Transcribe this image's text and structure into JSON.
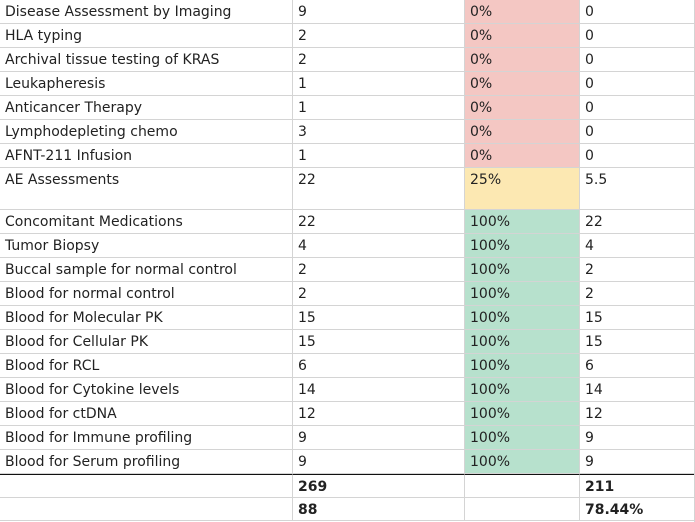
{
  "rows": [
    {
      "name": "Disease Assessment by Imaging",
      "count": "9",
      "pct": "0%",
      "value": "0",
      "status": "red"
    },
    {
      "name": "HLA typing",
      "count": "2",
      "pct": "0%",
      "value": "0",
      "status": "red"
    },
    {
      "name": "Archival tissue testing of KRAS",
      "count": "2",
      "pct": "0%",
      "value": "0",
      "status": "red"
    },
    {
      "name": "Leukapheresis",
      "count": "1",
      "pct": "0%",
      "value": "0",
      "status": "red"
    },
    {
      "name": "Anticancer Therapy",
      "count": "1",
      "pct": "0%",
      "value": "0",
      "status": "red"
    },
    {
      "name": "Lymphodepleting chemo",
      "count": "3",
      "pct": "0%",
      "value": "0",
      "status": "red"
    },
    {
      "name": "AFNT-211 Infusion",
      "count": "1",
      "pct": "0%",
      "value": "0",
      "status": "red"
    },
    {
      "name": "AE Assessments",
      "count": "22",
      "pct": "25%",
      "value": "5.5",
      "status": "yellow"
    },
    {
      "name": "Concomitant Medications",
      "count": "22",
      "pct": "100%",
      "value": "22",
      "status": "green"
    },
    {
      "name": "Tumor Biopsy",
      "count": "4",
      "pct": "100%",
      "value": "4",
      "status": "green"
    },
    {
      "name": "Buccal sample for normal control",
      "count": "2",
      "pct": "100%",
      "value": "2",
      "status": "green"
    },
    {
      "name": "Blood for normal control",
      "count": "2",
      "pct": "100%",
      "value": "2",
      "status": "green"
    },
    {
      "name": "Blood for Molecular PK",
      "count": "15",
      "pct": "100%",
      "value": "15",
      "status": "green"
    },
    {
      "name": "Blood for Cellular PK",
      "count": "15",
      "pct": "100%",
      "value": "15",
      "status": "green"
    },
    {
      "name": "Blood for RCL",
      "count": "6",
      "pct": "100%",
      "value": "6",
      "status": "green"
    },
    {
      "name": "Blood for Cytokine levels",
      "count": "14",
      "pct": "100%",
      "value": "14",
      "status": "green"
    },
    {
      "name": "Blood for ctDNA",
      "count": "12",
      "pct": "100%",
      "value": "12",
      "status": "green"
    },
    {
      "name": "Blood for Immune profiling",
      "count": "9",
      "pct": "100%",
      "value": "9",
      "status": "green"
    },
    {
      "name": "Blood for Serum profiling",
      "count": "9",
      "pct": "100%",
      "value": "9",
      "status": "green"
    }
  ],
  "totals": [
    {
      "count": "269",
      "value": "211"
    },
    {
      "count": "88",
      "value": "78.44%"
    }
  ],
  "colors": {
    "red": "#f4c7c3",
    "yellow": "#fce8b2",
    "green": "#b7e1cd"
  }
}
